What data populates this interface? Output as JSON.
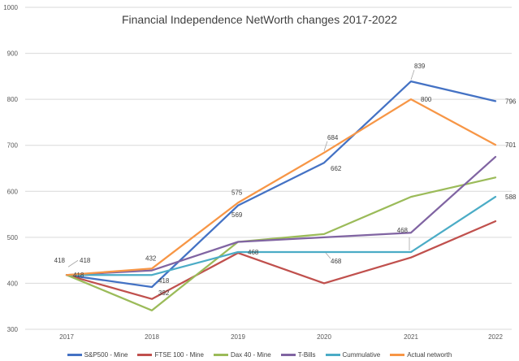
{
  "chart_data": {
    "type": "line",
    "title": "Financial Independence NetWorth changes 2017-2022",
    "xlabel": "",
    "ylabel": "",
    "categories": [
      "2017",
      "2018",
      "2019",
      "2020",
      "2021",
      "2022"
    ],
    "ylim": [
      300,
      1000
    ],
    "yticks": [
      300,
      400,
      500,
      600,
      700,
      800,
      900,
      1000
    ],
    "grid": true,
    "legend_position": "bottom",
    "series": [
      {
        "name": "S&P500 - Mine",
        "color": "#4472C4",
        "values": [
          418,
          392,
          569,
          662,
          839,
          796
        ]
      },
      {
        "name": "FTSE 100 - Mine",
        "color": "#C0504D",
        "values": [
          418,
          366,
          466,
          400,
          456,
          535
        ]
      },
      {
        "name": "Dax 40 - Mine",
        "color": "#9BBB59",
        "values": [
          418,
          341,
          490,
          507,
          588,
          630
        ]
      },
      {
        "name": "T-Bills",
        "color": "#8064A2",
        "values": [
          418,
          428,
          490,
          500,
          510,
          675
        ]
      },
      {
        "name": "Cummulative",
        "color": "#4BACC6",
        "values": [
          418,
          418,
          468,
          468,
          468,
          588
        ]
      },
      {
        "name": "Actual networth",
        "color": "#F79646",
        "values": [
          418,
          432,
          575,
          684,
          800,
          701
        ]
      }
    ],
    "data_labels": [
      {
        "series": 0,
        "index": 0,
        "text": "418",
        "pos": "cs_left"
      },
      {
        "series": 0,
        "index": 1,
        "text": "392",
        "pos": "below_right"
      },
      {
        "series": 0,
        "index": 2,
        "text": "569",
        "pos": "below"
      },
      {
        "series": 0,
        "index": 3,
        "text": "662",
        "pos": "below_right"
      },
      {
        "series": 0,
        "index": 4,
        "text": "839",
        "pos": "callout_up"
      },
      {
        "series": 0,
        "index": 5,
        "text": "796",
        "pos": "right"
      },
      {
        "series": 4,
        "index": 1,
        "text": "418",
        "pos": "below_right"
      },
      {
        "series": 4,
        "index": 2,
        "text": "468",
        "pos": "right"
      },
      {
        "series": 4,
        "index": 3,
        "text": "468",
        "pos": "callout_down"
      },
      {
        "series": 4,
        "index": 4,
        "text": "468",
        "pos": "callout_up_left"
      },
      {
        "series": 4,
        "index": 5,
        "text": "588",
        "pos": "right"
      },
      {
        "series": 5,
        "index": 0,
        "text": "418",
        "pos": "callout_right"
      },
      {
        "series": 5,
        "index": 1,
        "text": "432",
        "pos": "above"
      },
      {
        "series": 5,
        "index": 2,
        "text": "575",
        "pos": "above"
      },
      {
        "series": 5,
        "index": 3,
        "text": "684",
        "pos": "callout_up"
      },
      {
        "series": 5,
        "index": 4,
        "text": "800",
        "pos": "right"
      },
      {
        "series": 5,
        "index": 5,
        "text": "701",
        "pos": "right"
      },
      {
        "series": 3,
        "index": 0,
        "text": "418",
        "pos": "below_right_small"
      }
    ]
  }
}
